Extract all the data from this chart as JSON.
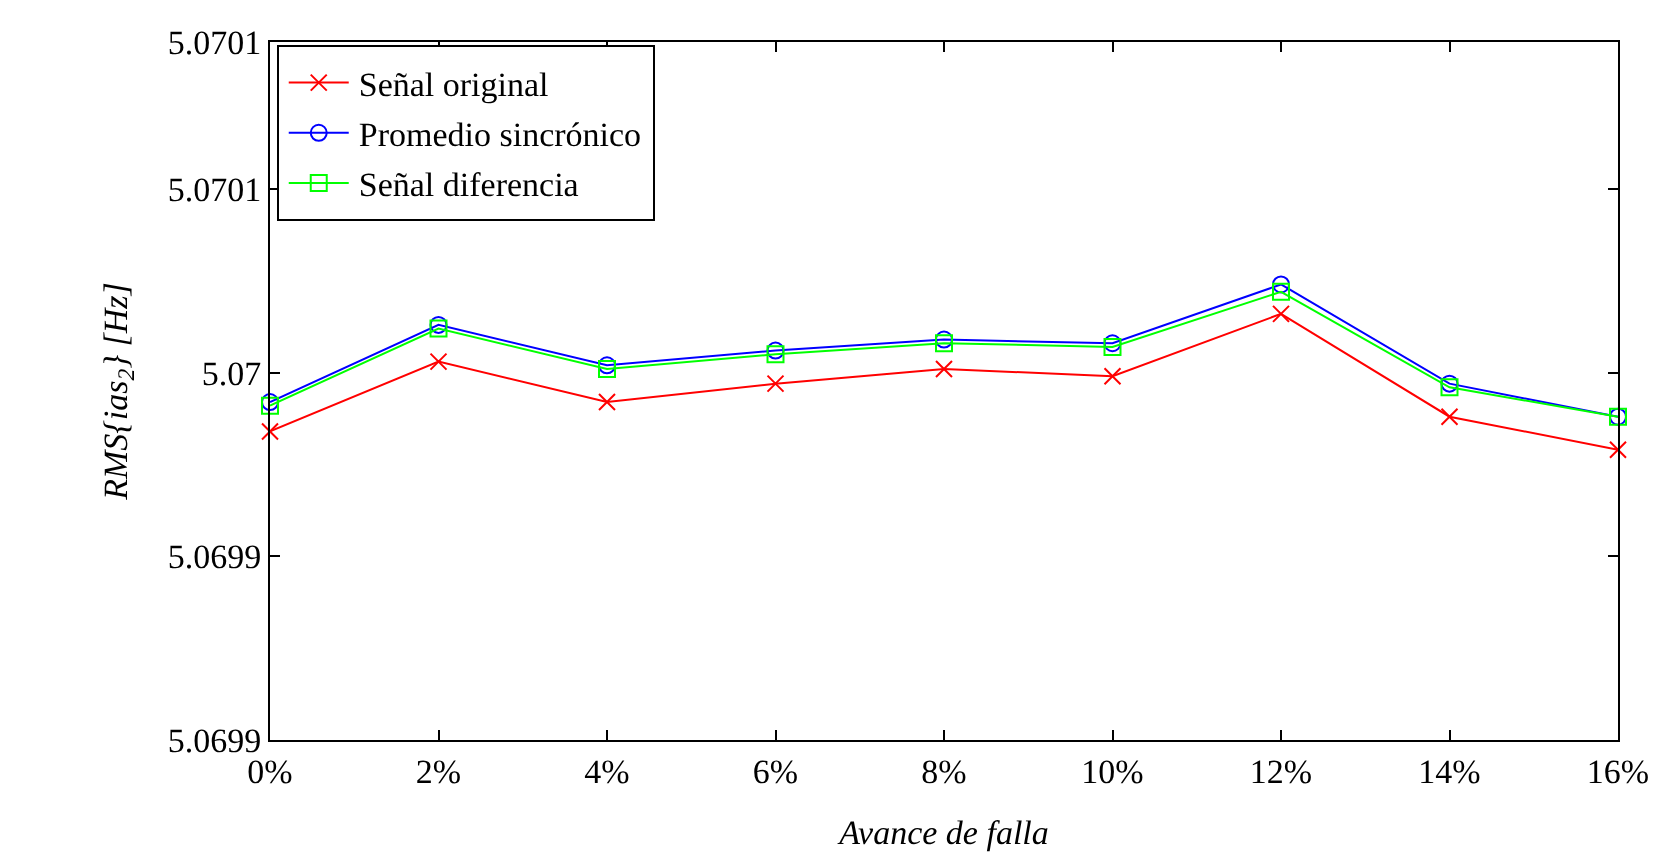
{
  "chart_data": {
    "type": "line",
    "xlabel": "Avance de falla",
    "ylabel": "RMS{ias$_{2}$} [Hz]",
    "x": [
      0,
      2,
      4,
      6,
      8,
      10,
      12,
      14,
      16
    ],
    "series": [
      {
        "name": "Señal original",
        "color": "#ff0000",
        "marker": "cross",
        "values": [
          5.069984,
          5.070003,
          5.069992,
          5.069997,
          5.070001,
          5.069999,
          5.070016,
          5.069988,
          5.069979
        ]
      },
      {
        "name": "Promedio sincrónico",
        "color": "#0000ff",
        "marker": "circle",
        "values": [
          5.069992,
          5.070013,
          5.070002,
          5.070006,
          5.070009,
          5.070008,
          5.070024,
          5.069997,
          5.069988
        ]
      },
      {
        "name": "Señal diferencia",
        "color": "#00ff00",
        "marker": "square",
        "values": [
          5.069991,
          5.070012,
          5.070001,
          5.070005,
          5.070008,
          5.070007,
          5.070022,
          5.069996,
          5.069988
        ]
      }
    ],
    "xlim": [
      0,
      16
    ],
    "xticks": [
      {
        "value": 0,
        "label": "0%"
      },
      {
        "value": 2,
        "label": "2%"
      },
      {
        "value": 4,
        "label": "4%"
      },
      {
        "value": 6,
        "label": "6%"
      },
      {
        "value": 8,
        "label": "8%"
      },
      {
        "value": 10,
        "label": "10%"
      },
      {
        "value": 12,
        "label": "12%"
      },
      {
        "value": 14,
        "label": "14%"
      },
      {
        "value": 16,
        "label": "16%"
      }
    ],
    "ylim": [
      5.0699,
      5.07009
    ],
    "yticks": [
      {
        "value": 5.0699,
        "label": "5.0699"
      },
      {
        "value": 5.06995,
        "label": "5.0699"
      },
      {
        "value": 5.07,
        "label": "5.07"
      },
      {
        "value": 5.07005,
        "label": "5.0701"
      },
      {
        "value": 5.07009,
        "label": "5.0701"
      }
    ],
    "legend": "top left",
    "line_style": "solid"
  }
}
